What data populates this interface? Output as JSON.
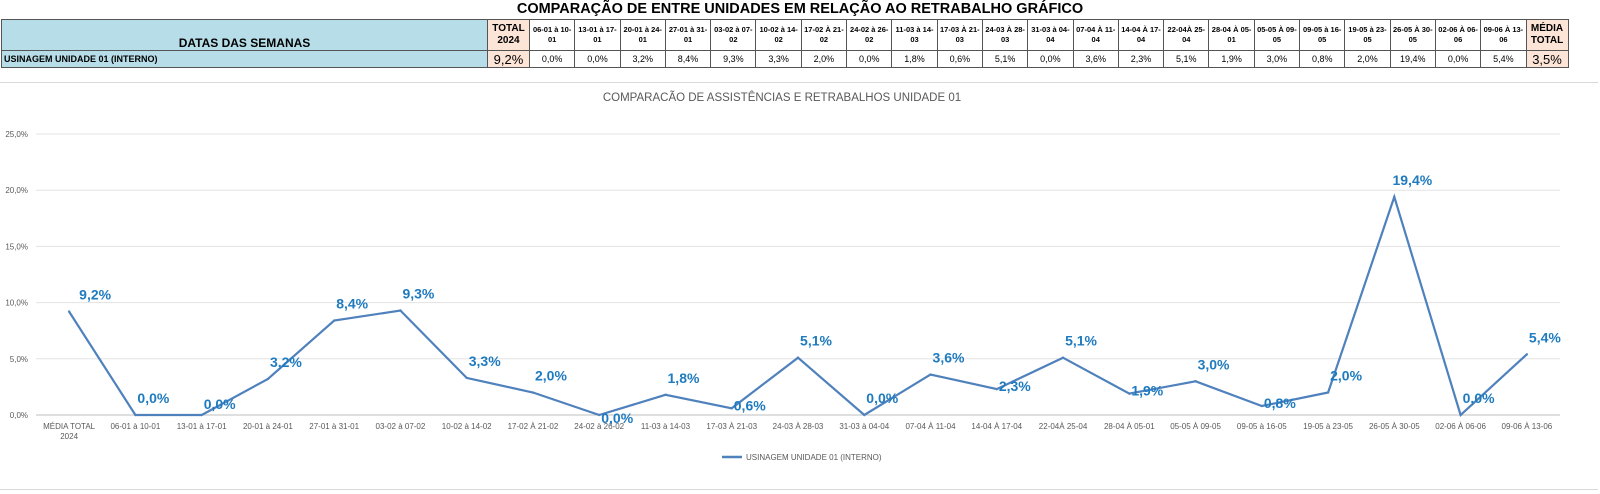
{
  "title": "COMPARAÇÃO DE ENTRE UNIDADES EM RELAÇÃO AO RETRABALHO GRÁFICO",
  "table": {
    "header_label": "DATAS DAS SEMANAS",
    "total_header": [
      "TOTAL",
      "2024"
    ],
    "media_header": [
      "MÉDIA",
      "TOTAL"
    ],
    "weeks": [
      [
        "06-01 à 10-",
        "01"
      ],
      [
        "13-01 à 17-",
        "01"
      ],
      [
        "20-01 à 24-",
        "01"
      ],
      [
        "27-01 à 31-",
        "01"
      ],
      [
        "03-02 à 07-",
        "02"
      ],
      [
        "10-02 à 14-",
        "02"
      ],
      [
        "17-02 À 21-",
        "02"
      ],
      [
        "24-02 à 26-",
        "02"
      ],
      [
        "11-03 à 14-",
        "03"
      ],
      [
        "17-03 À 21-",
        "03"
      ],
      [
        "24-03 À 28-",
        "03"
      ],
      [
        "31-03 à 04-",
        "04"
      ],
      [
        "07-04 À 11-",
        "04"
      ],
      [
        "14-04 À 17-",
        "04"
      ],
      [
        "22-04À 25-",
        "04"
      ],
      [
        "28-04 À 05-",
        "01"
      ],
      [
        "05-05 À 09-",
        "05"
      ],
      [
        "09-05 à 16-",
        "05"
      ],
      [
        "19-05 à 23-",
        "05"
      ],
      [
        "26-05 À 30-",
        "05"
      ],
      [
        "02-06 À 06-",
        "06"
      ],
      [
        "09-06 À 13-",
        "06"
      ]
    ],
    "row_label": "USINAGEM UNIDADE 01 (INTERNO)",
    "row_total": "9,2%",
    "row_values": [
      "0,0%",
      "0,0%",
      "3,2%",
      "8,4%",
      "9,3%",
      "3,3%",
      "2,0%",
      "0,0%",
      "1,8%",
      "0,6%",
      "5,1%",
      "0,0%",
      "3,6%",
      "2,3%",
      "5,1%",
      "1,9%",
      "3,0%",
      "0,8%",
      "2,0%",
      "19,4%",
      "0,0%",
      "5,4%"
    ],
    "row_media": "3,5%"
  },
  "chart_data": {
    "type": "line",
    "title": "COMPARACÃO DE ASSISTÊNCIAS E RETRABALHOS UNIDADE 01",
    "categories": [
      [
        "MÉDIA TOTAL",
        "2024"
      ],
      [
        "06-01 à 10-01"
      ],
      [
        "13-01 à 17-01"
      ],
      [
        "20-01 à 24-01"
      ],
      [
        "27-01 à 31-01"
      ],
      [
        "03-02 à 07-02"
      ],
      [
        "10-02 à 14-02"
      ],
      [
        "17-02 À 21-02"
      ],
      [
        "24-02 à 26-02"
      ],
      [
        "11-03 à 14-03"
      ],
      [
        "17-03 À 21-03"
      ],
      [
        "24-03 À 28-03"
      ],
      [
        "31-03 à 04-04"
      ],
      [
        "07-04 À 11-04"
      ],
      [
        "14-04 À 17-04"
      ],
      [
        "22-04À 25-04"
      ],
      [
        "28-04 À 05-01"
      ],
      [
        "05-05 À 09-05"
      ],
      [
        "09-05 à 16-05"
      ],
      [
        "19-05 à 23-05"
      ],
      [
        "26-05 À 30-05"
      ],
      [
        "02-06 À 06-06"
      ],
      [
        "09-06 À 13-06"
      ]
    ],
    "series": [
      {
        "name": "USINAGEM UNIDADE 01 (INTERNO)",
        "color": "#4f81bd",
        "values": [
          9.2,
          0.0,
          0.0,
          3.2,
          8.4,
          9.3,
          3.3,
          2.0,
          0.0,
          1.8,
          0.6,
          5.1,
          0.0,
          3.6,
          2.3,
          5.1,
          1.9,
          3.0,
          0.8,
          2.0,
          19.4,
          0.0,
          5.4
        ],
        "labels": [
          "9,2%",
          "0,0%",
          "0,0%",
          "3,2%",
          "8,4%",
          "9,3%",
          "3,3%",
          "2,0%",
          "0,0%",
          "1,8%",
          "0,6%",
          "5,1%",
          "0,0%",
          "3,6%",
          "2,3%",
          "5,1%",
          "1,9%",
          "3,0%",
          "0,8%",
          "2,0%",
          "19,4%",
          "0,0%",
          "5,4%"
        ]
      }
    ],
    "yticks": [
      0,
      5,
      10,
      15,
      20,
      25
    ],
    "ytick_labels": [
      "0,0%",
      "5,0%",
      "10,0%",
      "15,0%",
      "20,0%",
      "25,0%"
    ],
    "ylim": [
      0,
      25
    ],
    "grid": true,
    "legend_position": "bottom",
    "label_color": "#1f7bbf"
  }
}
